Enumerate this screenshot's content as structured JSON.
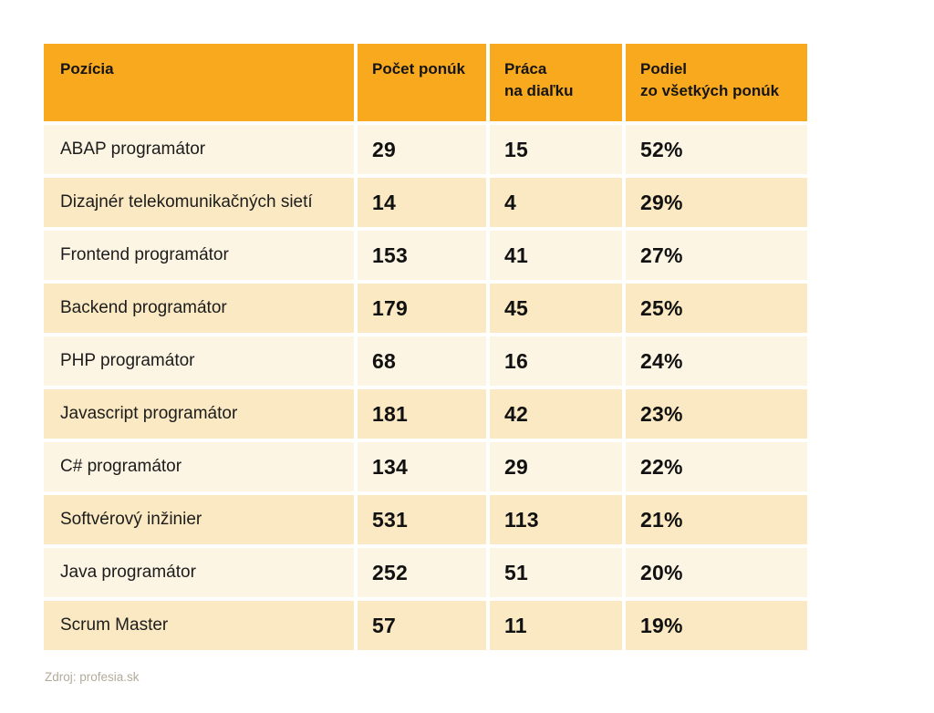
{
  "table": {
    "columns": [
      {
        "label": "Pozícia"
      },
      {
        "label": "Počet ponúk"
      },
      {
        "label": "Práca\nna diaľku"
      },
      {
        "label": "Podiel\nzo všetkých ponúk"
      }
    ],
    "rows": [
      {
        "position": "ABAP programátor",
        "offers": "29",
        "remote": "15",
        "share": "52%"
      },
      {
        "position": "Dizajnér telekomunikačných sietí",
        "offers": "14",
        "remote": "4",
        "share": "29%"
      },
      {
        "position": "Frontend programátor",
        "offers": "153",
        "remote": "41",
        "share": "27%"
      },
      {
        "position": "Backend programátor",
        "offers": "179",
        "remote": "45",
        "share": "25%"
      },
      {
        "position": "PHP programátor",
        "offers": "68",
        "remote": "16",
        "share": "24%"
      },
      {
        "position": "Javascript programátor",
        "offers": "181",
        "remote": "42",
        "share": "23%"
      },
      {
        "position": "C# programátor",
        "offers": "134",
        "remote": "29",
        "share": "22%"
      },
      {
        "position": "Softvérový inžinier",
        "offers": "531",
        "remote": "113",
        "share": "21%"
      },
      {
        "position": "Java programátor",
        "offers": "252",
        "remote": "51",
        "share": "20%"
      },
      {
        "position": "Scrum Master",
        "offers": "57",
        "remote": "11",
        "share": "19%"
      }
    ]
  },
  "footer": {
    "source": "Zdroj: profesia.sk"
  },
  "colors": {
    "header_bg": "#F9A91E",
    "row_light": "#FDF5E3",
    "row_dark": "#FAE9C2",
    "text": "#161616",
    "footer_text": "#B3AB9B"
  },
  "chart_data": {
    "type": "table",
    "columns": [
      "Pozícia",
      "Počet ponúk",
      "Práca na diaľku",
      "Podiel zo všetkých ponúk"
    ],
    "rows": [
      [
        "ABAP programátor",
        29,
        15,
        "52%"
      ],
      [
        "Dizajnér telekomunikačných sietí",
        14,
        4,
        "29%"
      ],
      [
        "Frontend programátor",
        153,
        41,
        "27%"
      ],
      [
        "Backend programátor",
        179,
        45,
        "25%"
      ],
      [
        "PHP programátor",
        68,
        16,
        "24%"
      ],
      [
        "Javascript programátor",
        181,
        42,
        "23%"
      ],
      [
        "C# programátor",
        134,
        29,
        "22%"
      ],
      [
        "Softvérový inžinier",
        531,
        113,
        "21%"
      ],
      [
        "Java programátor",
        252,
        51,
        "20%"
      ],
      [
        "Scrum Master",
        57,
        11,
        "19%"
      ]
    ],
    "source": "Zdroj: profesia.sk",
    "layout": "header row orange, data rows alternating light/dark cream, 4px white gutters"
  }
}
